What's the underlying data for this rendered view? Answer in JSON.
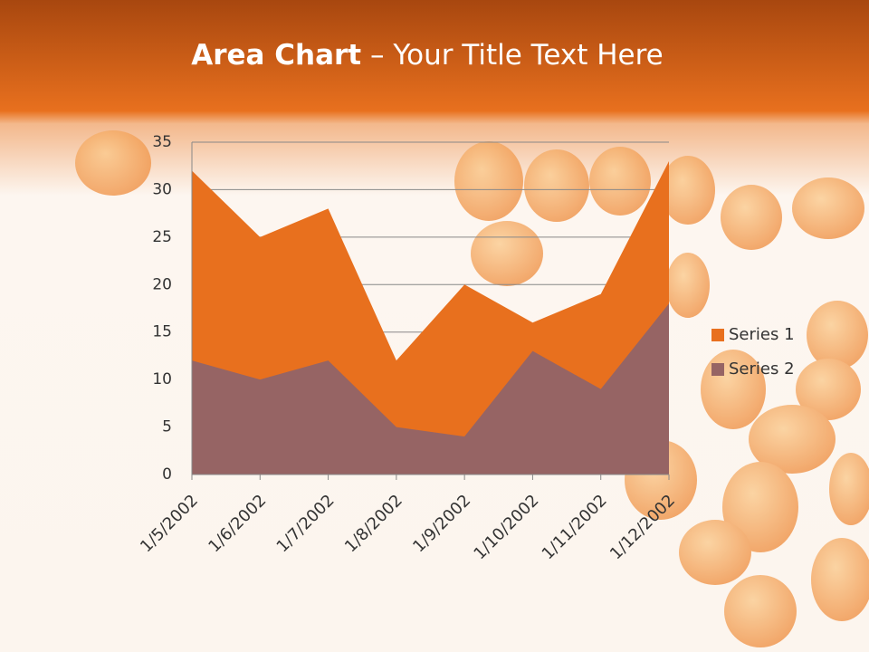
{
  "chart_data": {
    "type": "area",
    "title": [
      "Area Chart",
      " – Your Title Text Here"
    ],
    "categories": [
      "1/5/2002",
      "1/6/2002",
      "1/7/2002",
      "1/8/2002",
      "1/9/2002",
      "1/10/2002",
      "1/11/2002",
      "1/12/2002"
    ],
    "series": [
      {
        "name": "Series 1",
        "color": "#e8701e",
        "values": [
          32,
          25,
          28,
          12,
          20,
          16,
          19,
          33
        ]
      },
      {
        "name": "Series 2",
        "color": "#966464",
        "values": [
          12,
          10,
          12,
          5,
          4,
          13,
          9,
          18
        ]
      }
    ],
    "ylim": [
      0,
      35
    ],
    "yticks": [
      0,
      5,
      10,
      15,
      20,
      25,
      30,
      35
    ],
    "grid": true,
    "legend": "right"
  }
}
